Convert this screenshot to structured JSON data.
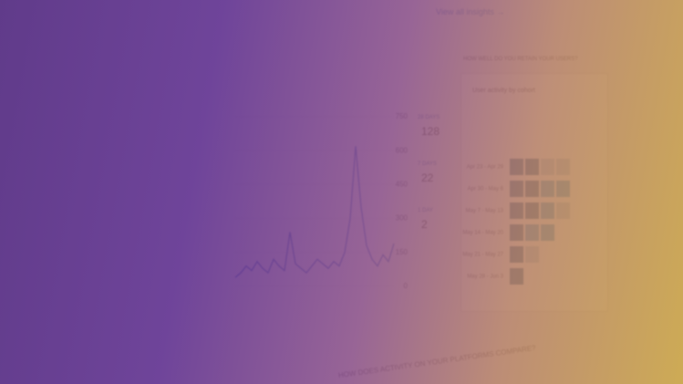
{
  "header": {
    "link": "View all insights →"
  },
  "retention": {
    "title": "HOW WELL DO YOU RETAIN YOUR USERS?",
    "card_title": "User activity by cohort",
    "rows": [
      "Apr 23 - Apr 29",
      "Apr 30 - May 6",
      "May 7 - May 13",
      "May 14 - May 20",
      "May 21 - May 27",
      "May 28 - Jun 3"
    ],
    "cells": [
      [
        3,
        3,
        1,
        1
      ],
      [
        3,
        3,
        2,
        2
      ],
      [
        3,
        3,
        2,
        1
      ],
      [
        3,
        2,
        2
      ],
      [
        3,
        1
      ],
      [
        3
      ]
    ]
  },
  "activity": {
    "stats": [
      {
        "label": "28 DAYS",
        "value": "128"
      },
      {
        "label": "7 DAYS",
        "value": "22"
      },
      {
        "label": "1 DAY",
        "value": "2"
      }
    ],
    "chart": {
      "type": "line",
      "ylim": [
        0,
        750
      ],
      "yticks": [
        0,
        150,
        300,
        450,
        600,
        750
      ],
      "values": [
        40,
        60,
        90,
        70,
        110,
        80,
        60,
        120,
        90,
        70,
        240,
        100,
        80,
        60,
        90,
        120,
        100,
        80,
        110,
        90,
        150,
        300,
        620,
        350,
        180,
        120,
        90,
        140,
        110,
        190
      ],
      "color": "#3f6fc8"
    }
  },
  "footer_title": "HOW DOES ACTIVITY ON YOUR PLATFORMS COMPARE?"
}
